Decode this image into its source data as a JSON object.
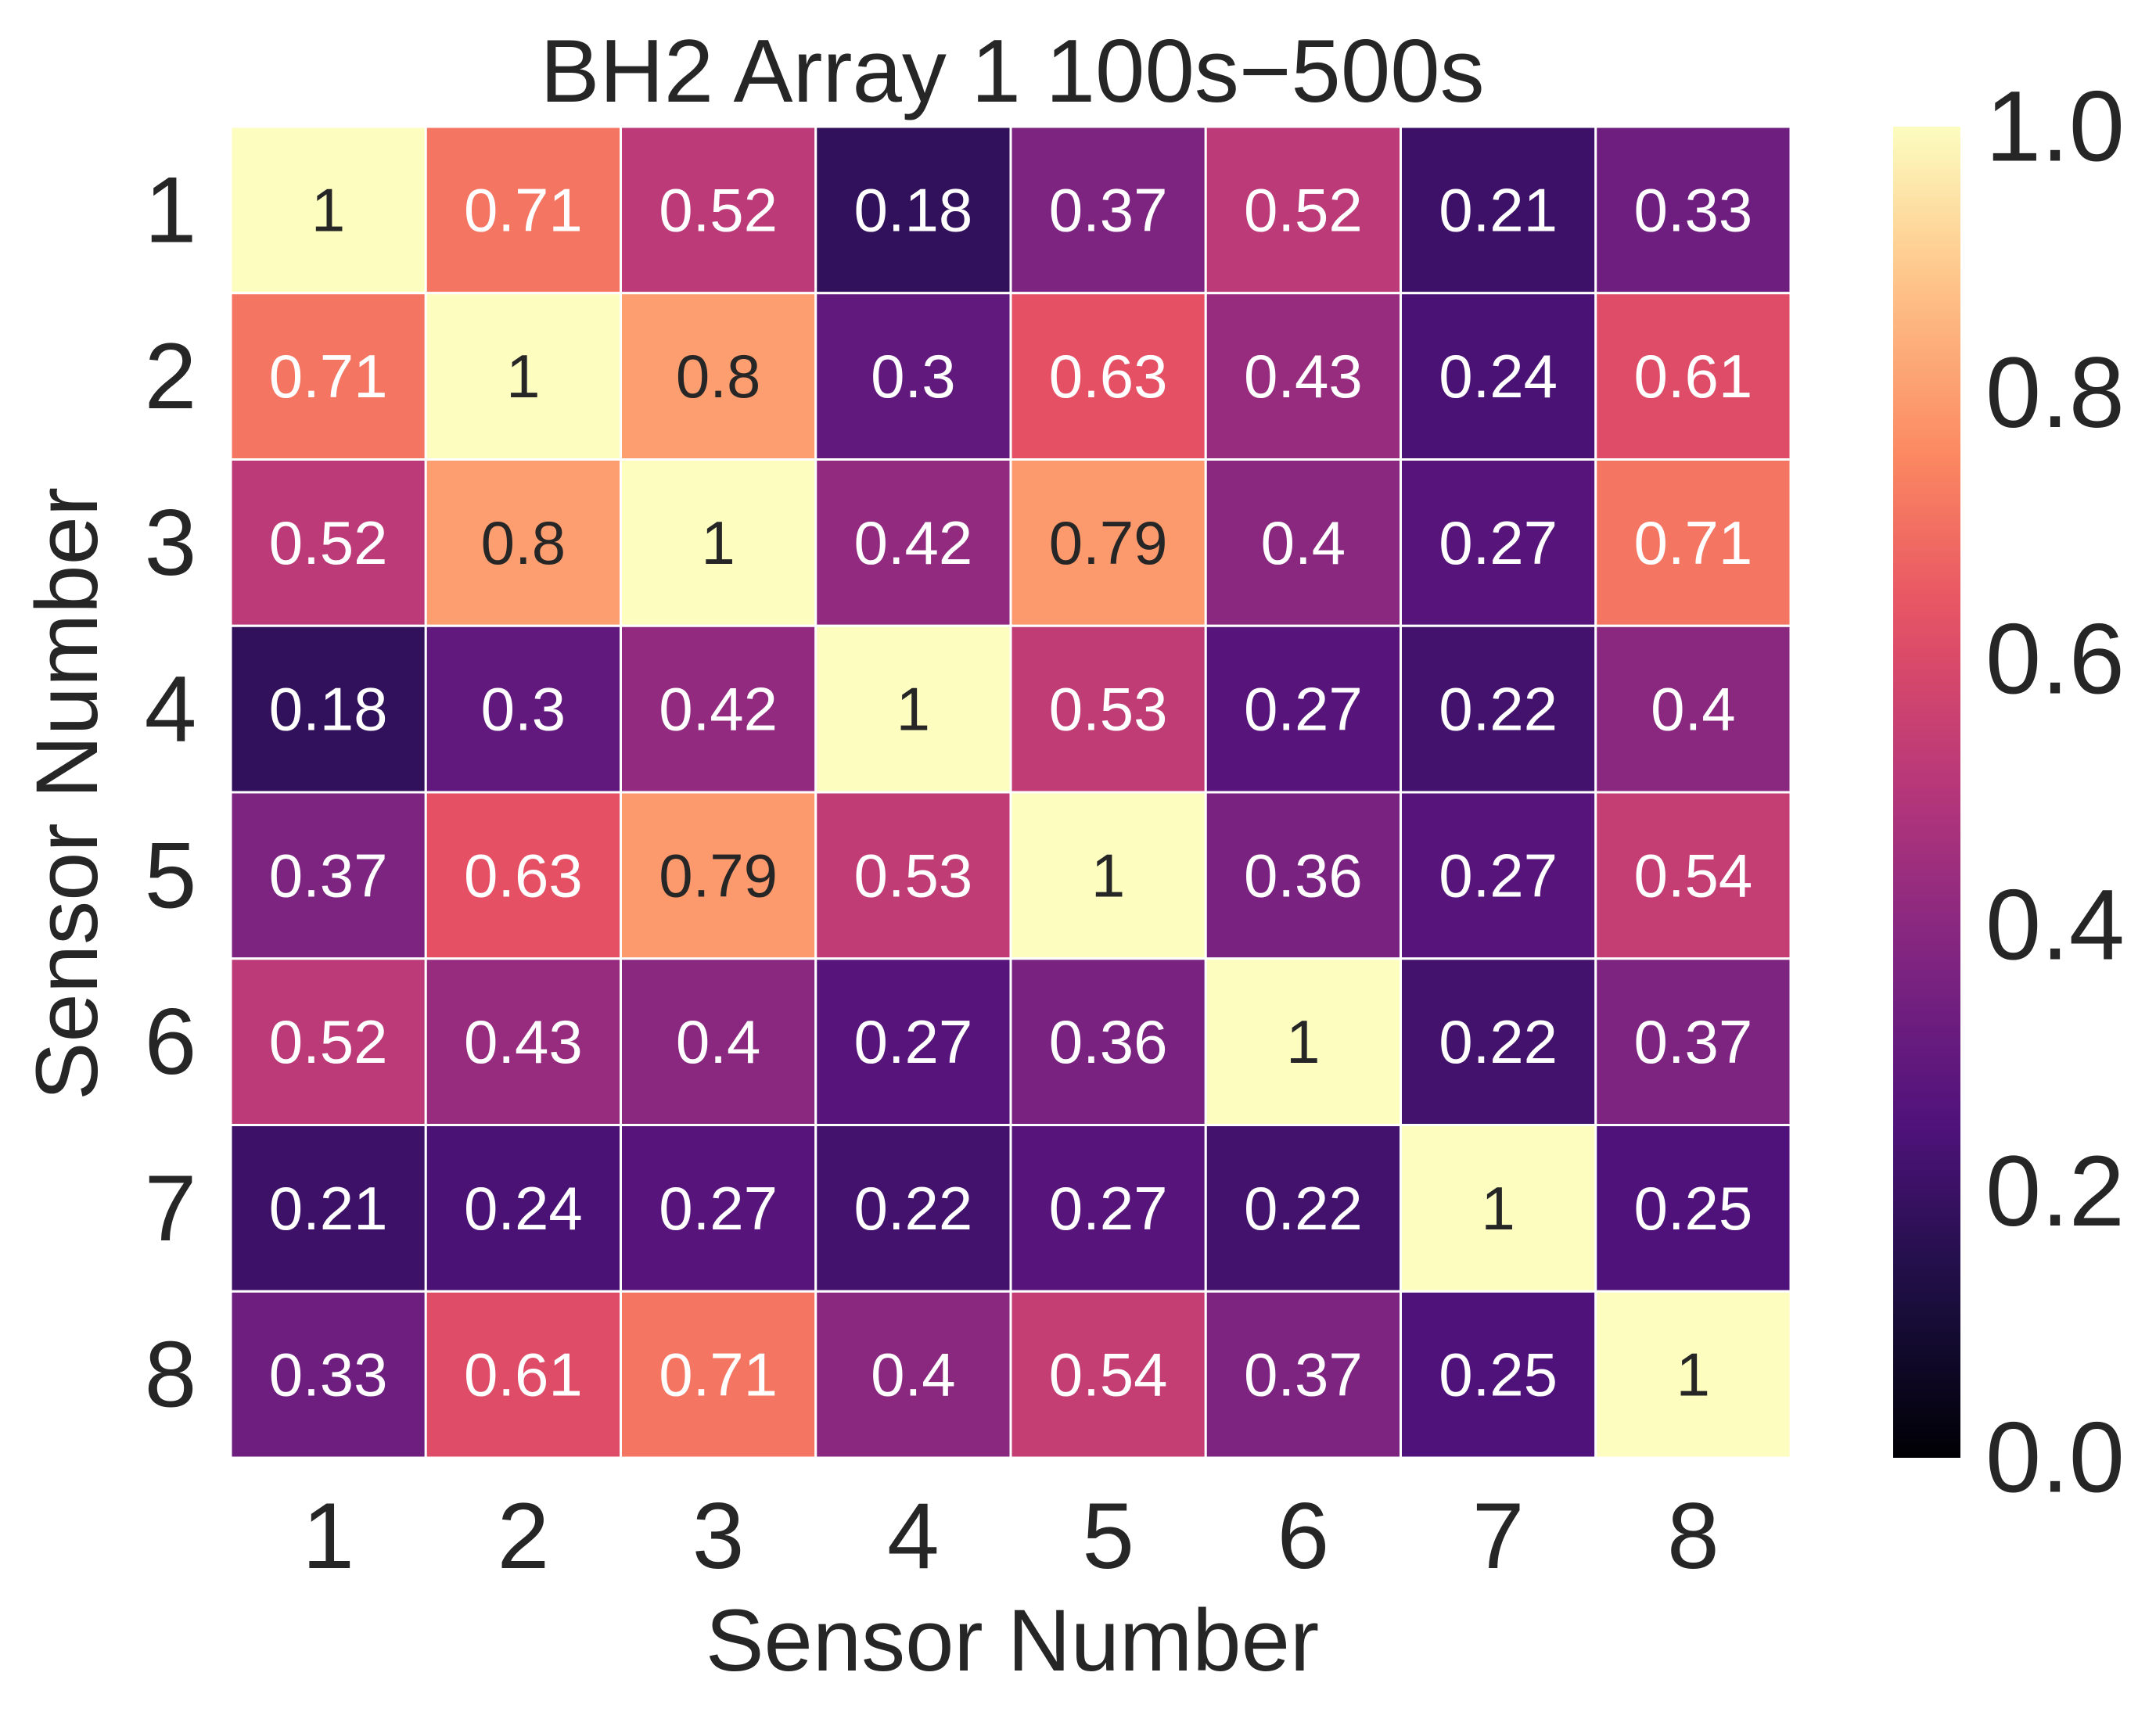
{
  "chart_data": {
    "type": "heatmap",
    "title": "BH2 Array 1 100s−500s",
    "xlabel": "Sensor Number",
    "ylabel": "Sensor Number",
    "x_categories": [
      "1",
      "2",
      "3",
      "4",
      "5",
      "6",
      "7",
      "8"
    ],
    "y_categories": [
      "1",
      "2",
      "3",
      "4",
      "5",
      "6",
      "7",
      "8"
    ],
    "values": [
      [
        1,
        0.71,
        0.52,
        0.18,
        0.37,
        0.52,
        0.21,
        0.33
      ],
      [
        0.71,
        1,
        0.8,
        0.3,
        0.63,
        0.43,
        0.24,
        0.61
      ],
      [
        0.52,
        0.8,
        1,
        0.42,
        0.79,
        0.4,
        0.27,
        0.71
      ],
      [
        0.18,
        0.3,
        0.42,
        1,
        0.53,
        0.27,
        0.22,
        0.4
      ],
      [
        0.37,
        0.63,
        0.79,
        0.53,
        1,
        0.36,
        0.27,
        0.54
      ],
      [
        0.52,
        0.43,
        0.4,
        0.27,
        0.36,
        1,
        0.22,
        0.37
      ],
      [
        0.21,
        0.24,
        0.27,
        0.22,
        0.27,
        0.22,
        1,
        0.25
      ],
      [
        0.33,
        0.61,
        0.71,
        0.4,
        0.54,
        0.37,
        0.25,
        1
      ]
    ],
    "colormap": "magma",
    "vmin": 0.0,
    "vmax": 1.0,
    "colorbar": {
      "ticks": [
        0.0,
        0.2,
        0.4,
        0.6,
        0.8,
        1.0
      ],
      "tick_labels": [
        "0.0",
        "0.2",
        "0.4",
        "0.6",
        "0.8",
        "1.0"
      ]
    },
    "annotated": true,
    "grid_line_color": "#ffffff"
  }
}
